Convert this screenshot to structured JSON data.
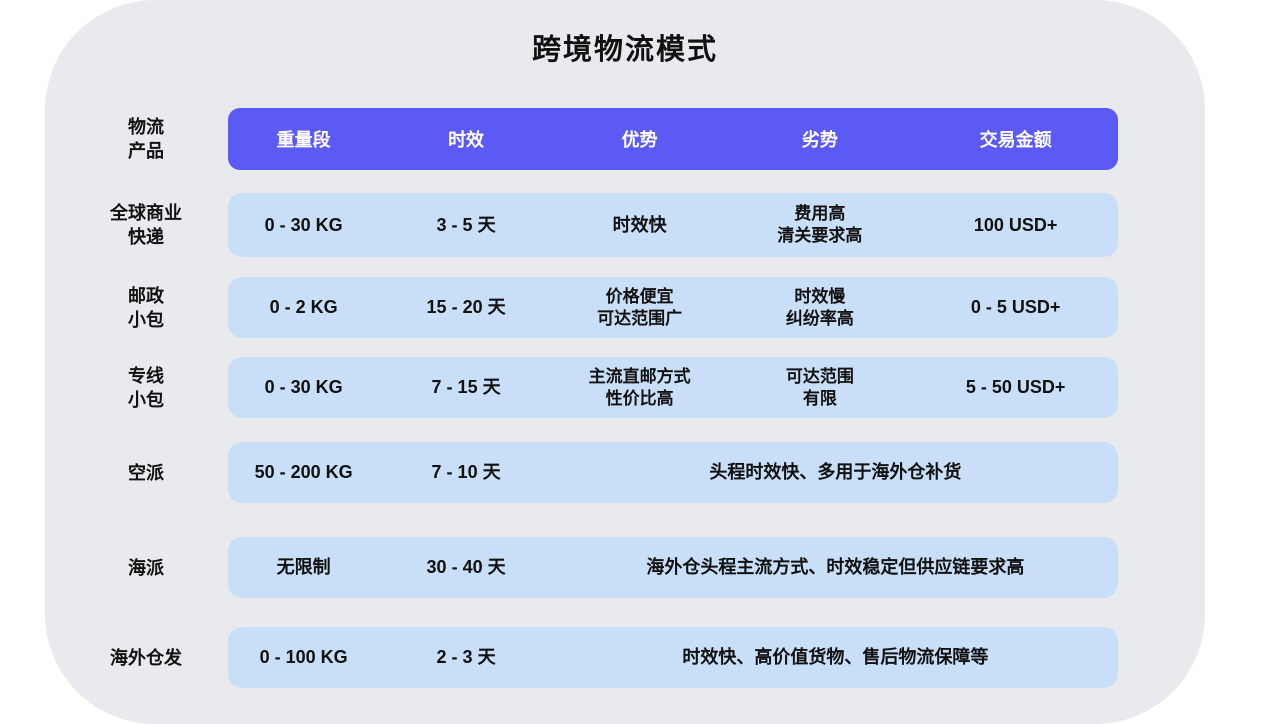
{
  "colors": {
    "card_bg": "#E9EAEE",
    "header_bg": "#5C5AF4",
    "row_bg": "#C9DFF8",
    "header_text": "#FFFFFF",
    "body_text": "#111111"
  },
  "chart_data": {
    "type": "table",
    "title": "跨境物流模式",
    "corner_label_lines": [
      "物流",
      "产品"
    ],
    "columns": [
      "重量段",
      "时效",
      "优势",
      "劣势",
      "交易金额"
    ],
    "rows": [
      {
        "label_lines": [
          "全球商业",
          "快递"
        ],
        "weight": "0 - 30 KG",
        "time": "3 - 5 天",
        "advantage_lines": [
          "时效快"
        ],
        "disadvantage_lines": [
          "费用高",
          "清关要求高"
        ],
        "amount": "100 USD+"
      },
      {
        "label_lines": [
          "邮政",
          "小包"
        ],
        "weight": "0 - 2 KG",
        "time": "15 - 20 天",
        "advantage_lines": [
          "价格便宜",
          "可达范围广"
        ],
        "disadvantage_lines": [
          "时效慢",
          "纠纷率高"
        ],
        "amount": "0 - 5 USD+"
      },
      {
        "label_lines": [
          "专线",
          "小包"
        ],
        "weight": "0 - 30 KG",
        "time": "7 - 15 天",
        "advantage_lines": [
          "主流直邮方式",
          "性价比高"
        ],
        "disadvantage_lines": [
          "可达范围",
          "有限"
        ],
        "amount": "5 - 50 USD+"
      },
      {
        "label_lines": [
          "空派"
        ],
        "weight": "50 - 200 KG",
        "time": "7 - 10 天",
        "description": "头程时效快、多用于海外仓补货"
      },
      {
        "label_lines": [
          "海派"
        ],
        "weight": "无限制",
        "time": "30 - 40 天",
        "description": "海外仓头程主流方式、时效稳定但供应链要求高"
      },
      {
        "label_lines": [
          "海外仓发"
        ],
        "weight": "0 - 100 KG",
        "time": "2 - 3 天",
        "description": "时效快、高价值货物、售后物流保障等"
      }
    ]
  }
}
